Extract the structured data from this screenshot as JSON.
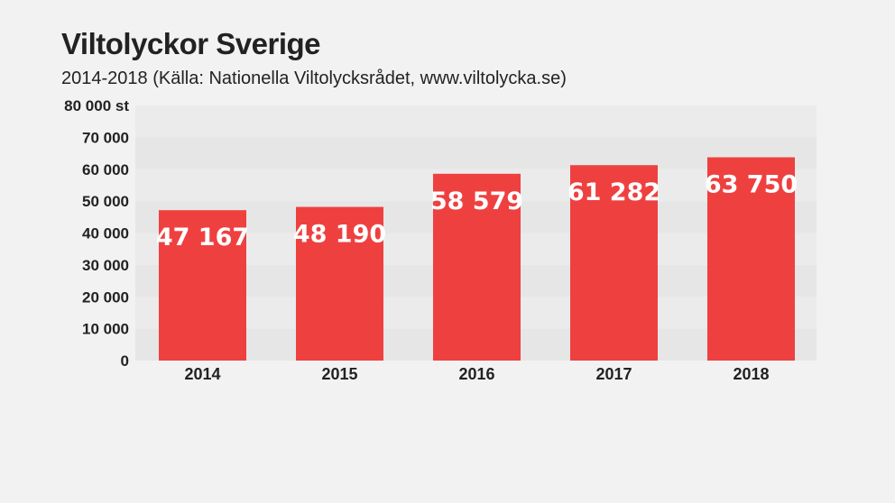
{
  "chart_data": {
    "type": "bar",
    "title": "Viltolyckor Sverige",
    "subtitle": "2014-2018 (Källa: Nationella Viltolycksrådet, www.viltolycka.se)",
    "categories": [
      "2014",
      "2015",
      "2016",
      "2017",
      "2018"
    ],
    "values": [
      47167,
      48190,
      58579,
      61282,
      63750
    ],
    "data_labels": [
      "47 167",
      "48 190",
      "58 579",
      "61 282",
      "63 750"
    ],
    "ylim": [
      0,
      80000
    ],
    "yticks": [
      0,
      10000,
      20000,
      30000,
      40000,
      50000,
      60000,
      70000,
      80000
    ],
    "ytick_labels": [
      "0",
      "10 000",
      "20 000",
      "30 000",
      "40 000",
      "50 000",
      "60 000",
      "70 000",
      "80 000 st"
    ],
    "xlabel": "",
    "ylabel": "",
    "grid": "alternating horizontal bands",
    "legend": "none",
    "colors": {
      "bar": "#ef4040",
      "band_dark": "#e6e6e6",
      "band_light": "#ebebeb",
      "background": "#f2f2f2",
      "bar_label": "#ffffff",
      "text": "#222222"
    }
  }
}
